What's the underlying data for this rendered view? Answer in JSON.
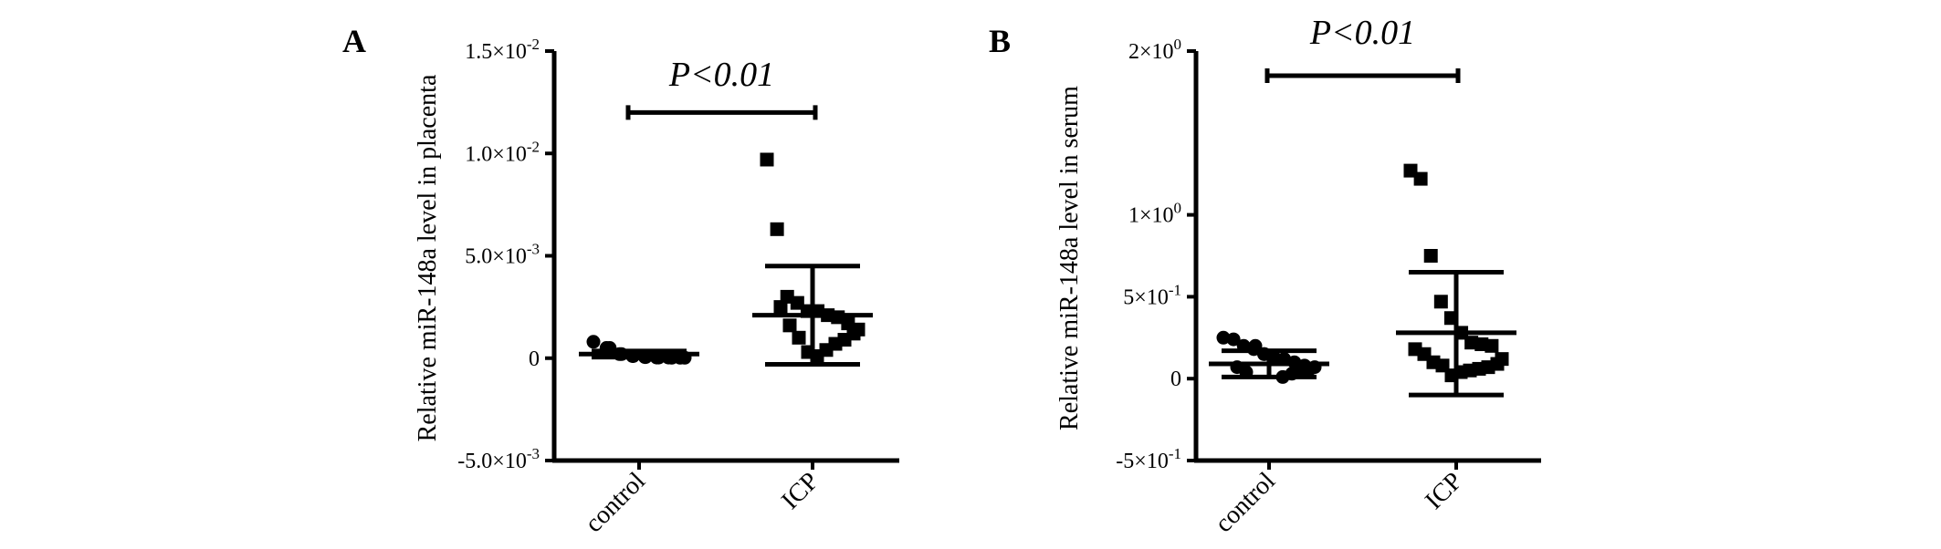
{
  "chart_data": [
    {
      "type": "scatter",
      "panel": "A",
      "ylabel": "Relative miR-148a level in placenta",
      "categories": [
        "control",
        "ICP"
      ],
      "ylim": [
        -0.005,
        0.015
      ],
      "yticks": [
        {
          "value": 0.015,
          "label": "1.5×10",
          "exp": "-2"
        },
        {
          "value": 0.01,
          "label": "1.0×10",
          "exp": "-2"
        },
        {
          "value": 0.005,
          "label": "5.0×10",
          "exp": "-3"
        },
        {
          "value": 0,
          "label": "0",
          "exp": ""
        },
        {
          "value": -0.005,
          "label": "-5.0×10",
          "exp": "-3"
        }
      ],
      "significance": {
        "text": "P<0.01",
        "bracket_y": 0.012
      },
      "series": [
        {
          "name": "control",
          "marker": "circle",
          "mean": 0.0002,
          "sd_low": 5e-05,
          "sd_high": 0.00035,
          "points": [
            0.0008,
            0.0005,
            0.0002,
            0.0001,
            5e-05,
            3e-05,
            2e-05,
            2e-05,
            2e-05,
            3e-05,
            3e-05,
            5e-05,
            0.0001,
            0.0002,
            0.0005
          ]
        },
        {
          "name": "ICP",
          "marker": "square",
          "mean": 0.0021,
          "sd_low": -0.0003,
          "sd_high": 0.0045,
          "points": [
            0.0097,
            0.0063,
            0.003,
            0.0027,
            0.0023,
            0.0023,
            0.0021,
            0.002,
            0.0017,
            0.0014,
            0.0012,
            0.0009,
            0.0007,
            0.0004,
            0.0001,
            0.0003,
            0.001,
            0.0016,
            0.0025
          ]
        }
      ]
    },
    {
      "type": "scatter",
      "panel": "B",
      "ylabel": "Relative miR-148a level in serum",
      "categories": [
        "control",
        "ICP"
      ],
      "ylim": [
        -0.5,
        2.0
      ],
      "yticks": [
        {
          "value": 2.0,
          "label": "2×10",
          "exp": "0"
        },
        {
          "value": 1.0,
          "label": "1×10",
          "exp": "0"
        },
        {
          "value": 0.5,
          "label": "5×10",
          "exp": "-1"
        },
        {
          "value": 0,
          "label": "0",
          "exp": ""
        },
        {
          "value": -0.5,
          "label": "-5×10",
          "exp": "-1"
        }
      ],
      "significance": {
        "text": "P<0.01",
        "bracket_y": 1.85
      },
      "series": [
        {
          "name": "control",
          "marker": "circle",
          "mean": 0.09,
          "sd_low": 0.01,
          "sd_high": 0.17,
          "points": [
            0.25,
            0.24,
            0.2,
            0.18,
            0.15,
            0.13,
            0.12,
            0.1,
            0.08,
            0.07,
            0.06,
            0.04,
            0.03,
            0.01,
            0.12,
            0.15,
            0.2,
            0.04,
            0.07
          ]
        },
        {
          "name": "ICP",
          "marker": "square",
          "mean": 0.28,
          "sd_low": -0.1,
          "sd_high": 0.65,
          "points": [
            1.27,
            1.22,
            0.75,
            0.47,
            0.37,
            0.28,
            0.22,
            0.21,
            0.2,
            0.12,
            0.09,
            0.07,
            0.06,
            0.05,
            0.04,
            0.02,
            0.08,
            0.1,
            0.15,
            0.18
          ]
        }
      ]
    }
  ]
}
